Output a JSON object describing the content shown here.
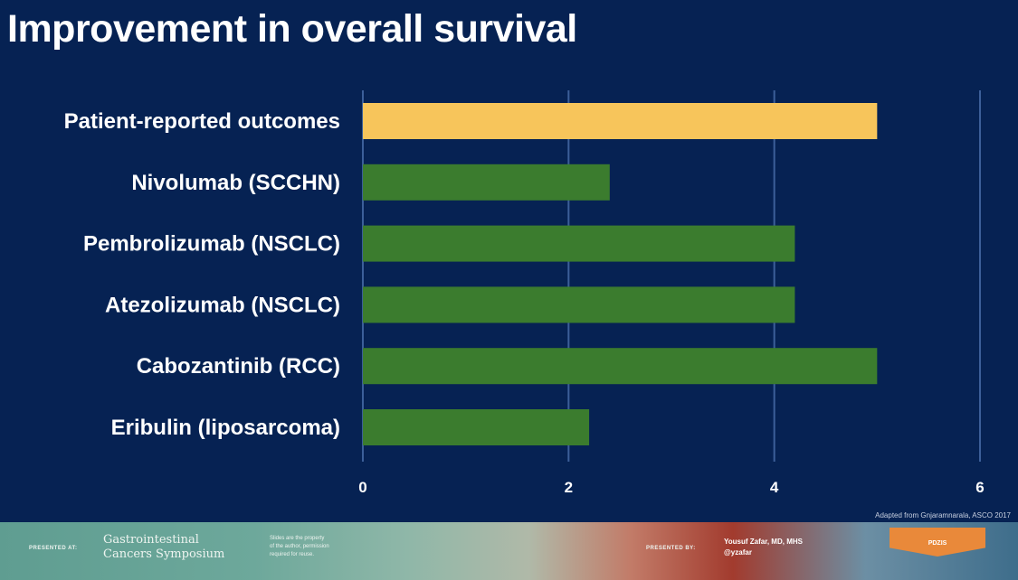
{
  "slide": {
    "title": "Improvement in overall survival"
  },
  "chart_data": {
    "type": "bar",
    "orientation": "horizontal",
    "title": "Improvement in overall survival",
    "categories": [
      "Patient-reported outcomes",
      "Nivolumab (SCCHN)",
      "Pembrolizumab (NSCLC)",
      "Atezolizumab (NSCLC)",
      "Cabozantinib (RCC)",
      "Eribulin (liposarcoma)"
    ],
    "values": [
      5.0,
      2.4,
      4.2,
      4.2,
      5.0,
      2.2
    ],
    "colors": [
      "#f7c55b",
      "#3b7c2e",
      "#3b7c2e",
      "#3b7c2e",
      "#3b7c2e",
      "#3b7c2e"
    ],
    "xlim": [
      0,
      6
    ],
    "xticks": [
      "0",
      "2",
      "4",
      "6"
    ],
    "xlabel": "",
    "ylabel": "",
    "grid": true
  },
  "source_note": "Adapted from Gnjaramnarala, ASCO 2017",
  "banner": {
    "presented_at": "PRESENTED AT:",
    "symposium": [
      "Gastrointestinal",
      "Cancers Symposium"
    ],
    "notice": [
      "Slides are the property",
      "of the author, permission",
      "required for reuse."
    ],
    "presented_by": "PRESENTED BY:",
    "presenter": [
      "Yousuf Zafar, MD, MHS",
      "@yzafar"
    ],
    "badge": "PDZIS"
  },
  "colors": {
    "background": "#062253",
    "highlight": "#f7c55b",
    "bar": "#3b7c2e",
    "grid": "#3c5f99"
  }
}
